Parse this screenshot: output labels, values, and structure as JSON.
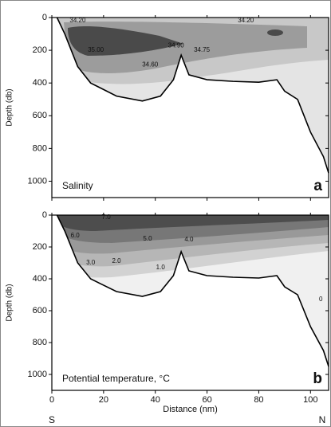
{
  "chart_data": [
    {
      "type": "contour",
      "title": "Salinity",
      "panel_label": "a",
      "ylabel": "Depth (db)",
      "xlim": [
        0,
        107
      ],
      "xticks": [
        0,
        20,
        40,
        60,
        80,
        100
      ],
      "ylim": [
        0,
        1100
      ],
      "yticks": [
        0,
        200,
        400,
        600,
        800,
        1000
      ],
      "bottom": {
        "x": [
          2,
          5,
          10,
          15,
          25,
          35,
          42,
          47,
          50,
          53,
          60,
          70,
          80,
          87,
          90,
          95,
          100,
          105,
          107
        ],
        "y": [
          0,
          100,
          300,
          400,
          480,
          510,
          480,
          380,
          230,
          350,
          380,
          390,
          395,
          380,
          450,
          500,
          700,
          850,
          950
        ]
      },
      "annotations": [
        {
          "text": "34.20",
          "x": 10,
          "y": 20
        },
        {
          "text": "34.20",
          "x": 75,
          "y": 20
        },
        {
          "text": "35.00",
          "x": 17,
          "y": 200
        },
        {
          "text": "34.90",
          "x": 48,
          "y": 172
        },
        {
          "text": "34.75",
          "x": 58,
          "y": 200
        },
        {
          "text": "34.60",
          "x": 38,
          "y": 290
        }
      ]
    },
    {
      "type": "contour",
      "title": "Potential temperature, °C",
      "panel_label": "b",
      "ylabel": "Depth (db)",
      "xlabel": "Distance (nm)",
      "x_start_label": "S",
      "x_end_label": "N",
      "xlim": [
        0,
        107
      ],
      "xticks": [
        0,
        20,
        40,
        60,
        80,
        100
      ],
      "ylim": [
        0,
        1100
      ],
      "yticks": [
        0,
        200,
        400,
        600,
        800,
        1000
      ],
      "bottom": {
        "x": [
          2,
          5,
          10,
          15,
          25,
          35,
          42,
          47,
          50,
          53,
          60,
          70,
          80,
          87,
          90,
          95,
          100,
          105,
          107
        ],
        "y": [
          0,
          100,
          300,
          400,
          480,
          510,
          480,
          380,
          230,
          350,
          380,
          390,
          395,
          380,
          450,
          500,
          700,
          850,
          950
        ]
      },
      "annotations": [
        {
          "text": "7.0",
          "x": 21,
          "y": 15
        },
        {
          "text": "6.0",
          "x": 9,
          "y": 130
        },
        {
          "text": "5.0",
          "x": 37,
          "y": 150
        },
        {
          "text": "4.0",
          "x": 53,
          "y": 155
        },
        {
          "text": "3.0",
          "x": 15,
          "y": 300
        },
        {
          "text": "2.0",
          "x": 25,
          "y": 290
        },
        {
          "text": "1.0",
          "x": 42,
          "y": 330
        },
        {
          "text": "0",
          "x": 104,
          "y": 530
        }
      ]
    }
  ]
}
